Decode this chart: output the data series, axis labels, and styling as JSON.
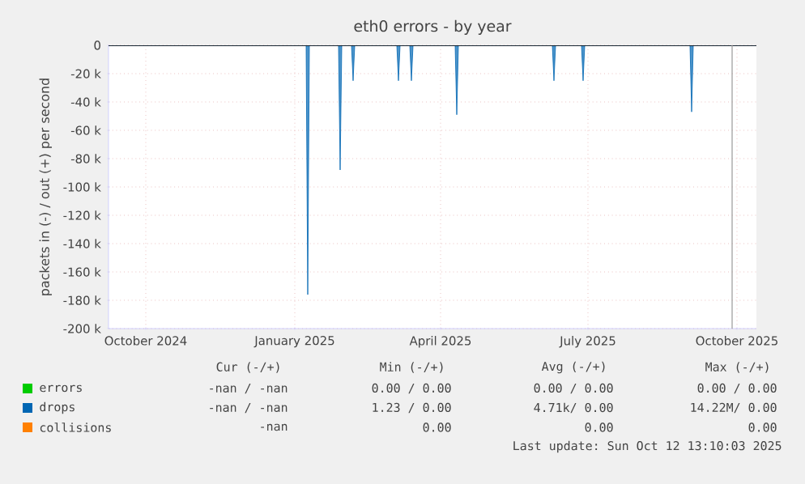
{
  "chart_data": {
    "type": "area",
    "title": "eth0 errors - by year",
    "ylabel": "packets in (-) / out (+) per second",
    "xlim": [
      "2024-09-08",
      "2025-10-13"
    ],
    "xticks": [
      {
        "value": "2024-10-01",
        "label": "October 2024"
      },
      {
        "value": "2025-01-01",
        "label": "January 2025"
      },
      {
        "value": "2025-04-01",
        "label": "April 2025"
      },
      {
        "value": "2025-07-01",
        "label": "July 2025"
      },
      {
        "value": "2025-10-01",
        "label": "October 2025"
      }
    ],
    "ylim": [
      -200000,
      0
    ],
    "yticks": [
      {
        "value": -200000,
        "label": "-200 k"
      },
      {
        "value": -180000,
        "label": "-180 k"
      },
      {
        "value": -160000,
        "label": "-160 k"
      },
      {
        "value": -140000,
        "label": "-140 k"
      },
      {
        "value": -120000,
        "label": "-120 k"
      },
      {
        "value": -100000,
        "label": "-100 k"
      },
      {
        "value": -80000,
        "label": "-80 k"
      },
      {
        "value": -60000,
        "label": "-60 k"
      },
      {
        "value": -40000,
        "label": "-40 k"
      },
      {
        "value": -20000,
        "label": "-20 k"
      },
      0
    ],
    "series": [
      {
        "name": "errors",
        "color": "#00cc00"
      },
      {
        "name": "drops",
        "color": "#0066b3",
        "x": [
          "2024-09-08",
          "2025-01-08",
          "2025-01-09",
          "2025-01-10",
          "2025-01-28",
          "2025-01-29",
          "2025-01-30",
          "2025-02-05",
          "2025-02-06",
          "2025-02-07",
          "2025-03-05",
          "2025-03-06",
          "2025-03-07",
          "2025-03-13",
          "2025-03-14",
          "2025-03-15",
          "2025-04-10",
          "2025-04-11",
          "2025-04-12",
          "2025-06-09",
          "2025-06-10",
          "2025-06-11",
          "2025-06-27",
          "2025-06-28",
          "2025-06-29",
          "2025-09-02",
          "2025-09-03",
          "2025-09-04",
          "2025-10-13"
        ],
        "values": [
          0,
          0,
          -176000,
          0,
          0,
          -88000,
          0,
          0,
          -25000,
          0,
          0,
          -25000,
          0,
          0,
          -25000,
          0,
          0,
          -49000,
          0,
          0,
          -25000,
          0,
          0,
          -25000,
          0,
          0,
          -47000,
          0,
          0
        ]
      },
      {
        "name": "collisions",
        "color": "#ff8000"
      }
    ],
    "ref_lines": [
      {
        "axis": "y",
        "value": 0,
        "color": "#000000"
      },
      {
        "axis": "x",
        "value": "2025-09-28",
        "color": "#999999"
      }
    ],
    "grid": true,
    "legend": "bottom",
    "annotations": [
      "Cur (-/+)",
      "Min (-/+)",
      "Avg (-/+)",
      "Max (-/+)",
      "-nan /  -nan",
      "0.00 /  0.00",
      "0.00 /  0.00",
      "0.00 /  0.00",
      "-nan /  -nan",
      "1.23 /  0.00",
      "4.71k/  0.00",
      "14.22M/  0.00",
      "-nan",
      "0.00",
      "0.00",
      "0.00",
      "Last update: Sun Oct 12 13:10:03 2025"
    ]
  }
}
